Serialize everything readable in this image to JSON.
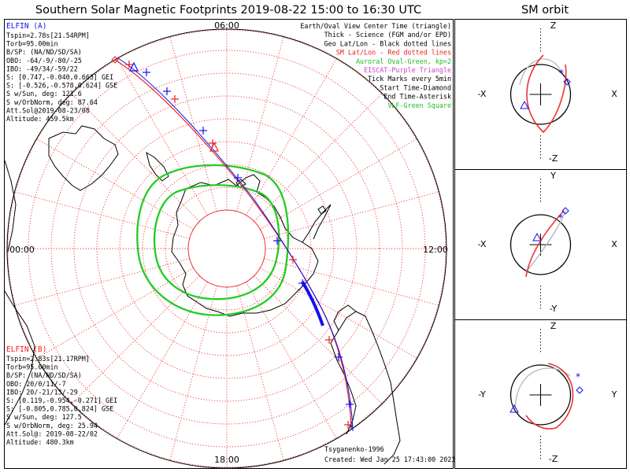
{
  "title": "Southern Solar Magnetic Footprints 2019-08-22 15:00 to 16:30 UTC",
  "orbit_title": "SM orbit",
  "colors": {
    "sat_a": "#1010ee",
    "sat_b": "#ee2020",
    "oval": "#22cc22",
    "grid": "#ee3333",
    "coast": "#000000",
    "legend_green": "#22bb22",
    "legend_purple": "#cc44cc"
  },
  "map": {
    "mlt_labels": {
      "top": "06:00",
      "left": "00:00",
      "right": "12:00",
      "bottom": "18:00"
    },
    "legend": [
      {
        "text": "Earth/Oval View Center Time (triangle)",
        "color": "#000000"
      },
      {
        "text": "Thick - Science (FGM and/or EPD)",
        "color": "#000000"
      },
      {
        "text": "Geo Lat/Lon - Black dotted lines",
        "color": "#000000"
      },
      {
        "text": "SM Lat/Lon - Red dotted lines",
        "color": "#ee2020"
      },
      {
        "text": "Auroral Oval-Green, kp=2",
        "color": "#22bb22"
      },
      {
        "text": "EISCAT-Purple Triangle",
        "color": "#cc44cc"
      },
      {
        "text": "Tick Marks every 5min",
        "color": "#000000"
      },
      {
        "text": "Start Time-Diamond",
        "color": "#000000"
      },
      {
        "text": "End Time-Asterisk",
        "color": "#000000"
      },
      {
        "text": "VLF-Green Square",
        "color": "#22bb22"
      }
    ],
    "elfin_a": {
      "name": "ELFIN (A)",
      "lines": [
        "Tspin=2.78s[21.54RPM]",
        "Torb=95.00min",
        "B/SP: (NA/ND/SD/SA)",
        "OBO: -64/-9/-80/-25",
        "IBO: -49/34/-59/22",
        "S: [0.747,-0.040,0.663] GEI",
        "S: [-0.526,-0.578,0.624] GSE",
        "S w/Sun, deg: 121.6",
        "S w/OrbNorm, deg: 87.64",
        "Att.Sol@2019-08-23/08",
        "Altitude: 459.5km"
      ]
    },
    "elfin_b": {
      "name": "ELFIN (B)",
      "lines": [
        "Tspin=2.83s[21.17RPM]",
        "Torb=95.00min",
        "B/SP: (NA/ND/SD/SA)",
        "OBO: 20/0/11/-7",
        "IBO: 20/-21/13/-29",
        "S: [0.119,-0.954,-0.271] GEI",
        "S: [-0.805,0.785,0.824] GSE",
        "S w/Sun, deg: 127.5",
        "S w/OrbNorm, deg: 25.94",
        "Att.Sol@: 2019-08-22/02",
        "Altitude: 480.3km"
      ]
    },
    "credit": "Tsyganenko-1996",
    "created": "Created: Wed Jan 25 17:43:00 2023"
  },
  "orbit_panels": [
    {
      "top": "Z",
      "bottom": "-Z",
      "left": "-X",
      "right": "X"
    },
    {
      "top": "Y",
      "bottom": "-Y",
      "left": "-X",
      "right": "X"
    },
    {
      "top": "Z",
      "bottom": "-Z",
      "left": "-Y",
      "right": "Y"
    }
  ]
}
